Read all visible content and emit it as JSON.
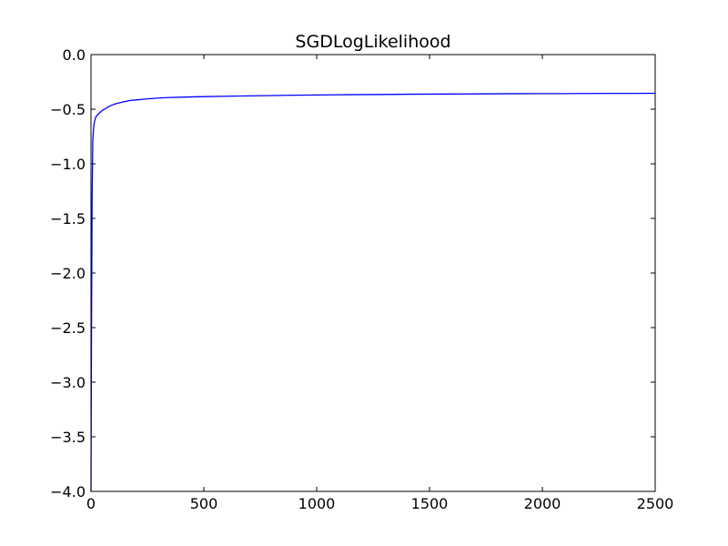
{
  "chart_data": {
    "type": "line",
    "title": "SGDLogLikelihood",
    "xlabel": "",
    "ylabel": "",
    "xlim": [
      0,
      2500
    ],
    "ylim": [
      -4.0,
      0.0
    ],
    "grid": false,
    "x_ticks": [
      0,
      500,
      1000,
      1500,
      2000,
      2500
    ],
    "y_ticks": [
      0.0,
      -0.5,
      -1.0,
      -1.5,
      -2.0,
      -2.5,
      -3.0,
      -3.5,
      -4.0
    ],
    "x_tick_labels": [
      "0",
      "500",
      "1000",
      "1500",
      "2000",
      "2500"
    ],
    "y_tick_labels": [
      "0.0",
      "−0.5",
      "−1.0",
      "−1.5",
      "−2.0",
      "−2.5",
      "−3.0",
      "−3.5",
      "−4.0"
    ],
    "series": [
      {
        "color": "#0000ff",
        "x": [
          0,
          2,
          5,
          8,
          12,
          16,
          20,
          25,
          30,
          40,
          50,
          60,
          75,
          90,
          110,
          130,
          150,
          175,
          200,
          250,
          300,
          350,
          400,
          450,
          500,
          600,
          700,
          800,
          900,
          1000,
          1100,
          1200,
          1300,
          1400,
          1500,
          1600,
          1700,
          1800,
          1900,
          2000,
          2100,
          2200,
          2300,
          2400,
          2500
        ],
        "y": [
          -4.0,
          -2.6,
          -1.3,
          -0.78,
          -0.66,
          -0.61,
          -0.58,
          -0.56,
          -0.55,
          -0.53,
          -0.51,
          -0.5,
          -0.48,
          -0.465,
          -0.45,
          -0.44,
          -0.43,
          -0.42,
          -0.415,
          -0.405,
          -0.398,
          -0.393,
          -0.39,
          -0.387,
          -0.385,
          -0.381,
          -0.378,
          -0.375,
          -0.372,
          -0.37,
          -0.368,
          -0.366,
          -0.365,
          -0.363,
          -0.362,
          -0.361,
          -0.36,
          -0.359,
          -0.358,
          -0.357,
          -0.357,
          -0.356,
          -0.355,
          -0.355,
          -0.354
        ]
      }
    ]
  }
}
